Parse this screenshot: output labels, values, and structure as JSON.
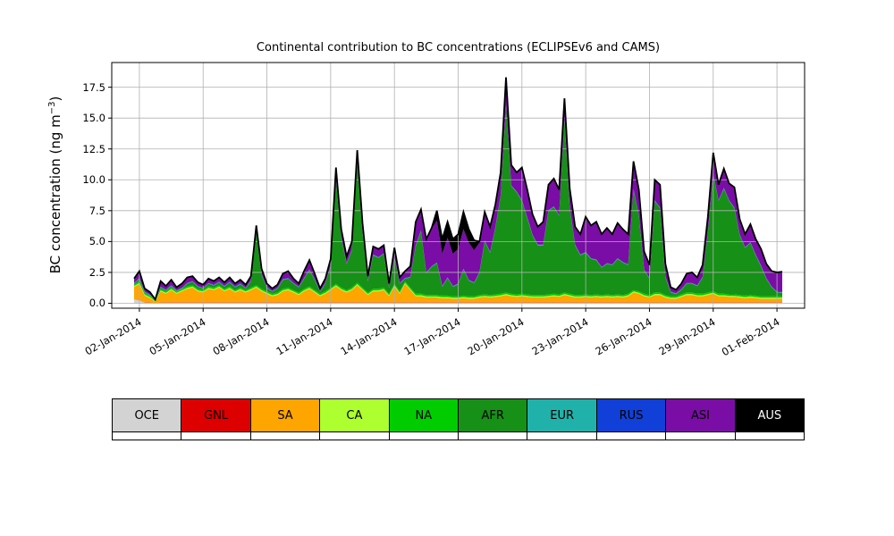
{
  "title": "Continental contribution to BC concentrations (ECLIPSEv6 and CAMS)",
  "ylabel": {
    "prefix": "BC concentration (ng m",
    "sup": "−3",
    "suffix": ")"
  },
  "legend": {
    "items": [
      {
        "label": "OCE",
        "color": "#d3d3d3",
        "text": "#000000"
      },
      {
        "label": "GNL",
        "color": "#dd0000",
        "text": "#000000"
      },
      {
        "label": "SA",
        "color": "#ffa500",
        "text": "#000000"
      },
      {
        "label": "CA",
        "color": "#adff2f",
        "text": "#000000"
      },
      {
        "label": "NA",
        "color": "#00cc00",
        "text": "#000000"
      },
      {
        "label": "AFR",
        "color": "#169016",
        "text": "#000000"
      },
      {
        "label": "EUR",
        "color": "#20b2aa",
        "text": "#000000"
      },
      {
        "label": "RUS",
        "color": "#1040d8",
        "text": "#000000"
      },
      {
        "label": "ASI",
        "color": "#7a0da5",
        "text": "#000000"
      },
      {
        "label": "AUS",
        "color": "#000000",
        "text": "#ffffff"
      }
    ]
  },
  "chart_data": {
    "type": "area",
    "stacked": true,
    "title": "Continental contribution to BC concentrations (ECLIPSEv6 and CAMS)",
    "xlabel": "",
    "ylabel": "BC concentration (ng m^-3)",
    "grid": true,
    "grid_color": "#b0b0b0",
    "total_line_color": "#000000",
    "x_units": "day number of 2014 (1 = 01-Jan-2014, 32 = 01-Feb-2014), 6-hourly estimates",
    "xlim": [
      0.7,
      33.3
    ],
    "ylim": [
      -0.4,
      19.5
    ],
    "x_ticks": [
      {
        "day": 2,
        "label": "02-Jan-2014"
      },
      {
        "day": 5,
        "label": "05-Jan-2014"
      },
      {
        "day": 8,
        "label": "08-Jan-2014"
      },
      {
        "day": 11,
        "label": "11-Jan-2014"
      },
      {
        "day": 14,
        "label": "14-Jan-2014"
      },
      {
        "day": 17,
        "label": "17-Jan-2014"
      },
      {
        "day": 20,
        "label": "20-Jan-2014"
      },
      {
        "day": 23,
        "label": "23-Jan-2014"
      },
      {
        "day": 26,
        "label": "26-Jan-2014"
      },
      {
        "day": 29,
        "label": "29-Jan-2014"
      },
      {
        "day": 32,
        "label": "01-Feb-2014"
      }
    ],
    "y_ticks": [
      {
        "value": 0,
        "label": "0.0"
      },
      {
        "value": 2.5,
        "label": "2.5"
      },
      {
        "value": 5,
        "label": "5.0"
      },
      {
        "value": 7.5,
        "label": "7.5"
      },
      {
        "value": 10,
        "label": "10.0"
      },
      {
        "value": 12.5,
        "label": "12.5"
      },
      {
        "value": 15,
        "label": "15.0"
      },
      {
        "value": 17.5,
        "label": "17.5"
      }
    ],
    "x": [
      1.75,
      2,
      2.25,
      2.5,
      2.75,
      3,
      3.25,
      3.5,
      3.75,
      4,
      4.25,
      4.5,
      4.75,
      5,
      5.25,
      5.5,
      5.75,
      6,
      6.25,
      6.5,
      6.75,
      7,
      7.25,
      7.5,
      7.75,
      8,
      8.25,
      8.5,
      8.75,
      9,
      9.25,
      9.5,
      9.75,
      10,
      10.25,
      10.5,
      10.75,
      11,
      11.25,
      11.5,
      11.75,
      12,
      12.25,
      12.5,
      12.75,
      13,
      13.25,
      13.5,
      13.75,
      14,
      14.25,
      14.5,
      14.75,
      15,
      15.25,
      15.5,
      15.75,
      16,
      16.25,
      16.5,
      16.75,
      17,
      17.25,
      17.5,
      17.75,
      18,
      18.25,
      18.5,
      18.75,
      19,
      19.25,
      19.5,
      19.75,
      20,
      20.25,
      20.5,
      20.75,
      21,
      21.25,
      21.5,
      21.75,
      22,
      22.25,
      22.5,
      22.75,
      23,
      23.25,
      23.5,
      23.75,
      24,
      24.25,
      24.5,
      24.75,
      25,
      25.25,
      25.5,
      25.75,
      26,
      26.25,
      26.5,
      26.75,
      27,
      27.25,
      27.5,
      27.75,
      28,
      28.25,
      28.5,
      28.75,
      29,
      29.25,
      29.5,
      29.75,
      30,
      30.25,
      30.5,
      30.75,
      31,
      31.25,
      31.5,
      31.75,
      32,
      32.25
    ],
    "series": [
      {
        "name": "OCE",
        "color": "#d3d3d3",
        "base": 0.05,
        "overrides": {
          "0": 0.3,
          "1": 0.25,
          "4": 0.02
        }
      },
      {
        "name": "GNL",
        "color": "#dd0000",
        "base": 0.02,
        "overrides": {
          "4": 0.01
        }
      },
      {
        "name": "SA",
        "color": "#ffa500",
        "values": [
          1.0,
          1.3,
          0.55,
          0.35,
          0.1,
          0.9,
          0.7,
          1.0,
          0.7,
          0.9,
          1.1,
          1.2,
          0.9,
          0.8,
          1.1,
          1.0,
          1.2,
          0.9,
          1.1,
          0.8,
          1.0,
          0.8,
          1.0,
          1.2,
          0.9,
          0.7,
          0.5,
          0.6,
          0.9,
          1.0,
          0.8,
          0.6,
          0.9,
          1.1,
          0.8,
          0.5,
          0.7,
          1.0,
          1.3,
          1.0,
          0.8,
          1.0,
          1.4,
          1.0,
          0.6,
          0.9,
          0.9,
          1.0,
          0.5,
          1.3,
          0.7,
          1.5,
          1.0,
          0.5,
          0.5,
          0.4,
          0.4,
          0.4,
          0.35,
          0.35,
          0.3,
          0.3,
          0.35,
          0.3,
          0.3,
          0.4,
          0.45,
          0.4,
          0.45,
          0.5,
          0.6,
          0.5,
          0.45,
          0.5,
          0.45,
          0.4,
          0.4,
          0.4,
          0.45,
          0.5,
          0.45,
          0.6,
          0.5,
          0.4,
          0.4,
          0.45,
          0.4,
          0.45,
          0.4,
          0.45,
          0.4,
          0.45,
          0.4,
          0.5,
          0.8,
          0.7,
          0.5,
          0.4,
          0.6,
          0.6,
          0.4,
          0.3,
          0.3,
          0.45,
          0.6,
          0.6,
          0.5,
          0.5,
          0.6,
          0.7,
          0.5,
          0.5,
          0.45,
          0.45,
          0.4,
          0.35,
          0.4,
          0.35,
          0.3,
          0.3,
          0.3,
          0.3,
          0.3
        ]
      },
      {
        "name": "CA",
        "color": "#adff2f",
        "base": 0.08,
        "overrides": {
          "4": 0.02
        }
      },
      {
        "name": "NA",
        "color": "#00cc00",
        "base": 0.12,
        "overrides": {
          "4": 0.04
        }
      },
      {
        "name": "AFR",
        "color": "#169016",
        "values": [
          0.07,
          0.22,
          0.07,
          0.02,
          0.05,
          0.12,
          0.07,
          0.12,
          0.02,
          0.02,
          0.22,
          0.27,
          0.17,
          0.12,
          0.22,
          0.17,
          0.22,
          0.17,
          0.32,
          0.22,
          0.27,
          0.12,
          0.52,
          4.22,
          1.12,
          0.27,
          0.17,
          0.32,
          0.72,
          0.72,
          0.52,
          0.42,
          0.82,
          1.32,
          0.82,
          0.17,
          0.62,
          1.72,
          8.42,
          4.02,
          2.12,
          3.02,
          9.72,
          4.42,
          0.92,
          2.72,
          2.52,
          2.72,
          0.47,
          2.12,
          0.62,
          0.22,
          0.82,
          3.87,
          5.07,
          1.77,
          2.27,
          2.57,
          0.72,
          1.42,
          0.77,
          0.97,
          2.12,
          1.27,
          1.07,
          1.77,
          4.32,
          3.42,
          5.37,
          7.92,
          15.12,
          8.72,
          8.27,
          7.52,
          6.17,
          4.82,
          4.02,
          4.02,
          6.77,
          7.02,
          6.37,
          14.02,
          6.92,
          4.02,
          3.22,
          3.37,
          2.92,
          2.77,
          2.22,
          2.47,
          2.42,
          2.87,
          2.62,
          2.32,
          8.12,
          6.12,
          1.92,
          1.32,
          7.42,
          6.82,
          1.42,
          0.32,
          0.17,
          0.37,
          0.72,
          0.72,
          0.62,
          1.32,
          4.82,
          9.52,
          7.52,
          8.52,
          7.57,
          6.97,
          4.82,
          3.87,
          4.22,
          3.27,
          2.42,
          1.42,
          0.72,
          0.32,
          0.27
        ]
      },
      {
        "name": "EUR",
        "color": "#20b2aa",
        "base": 0.03,
        "overrides": {
          "4": 0.01
        }
      },
      {
        "name": "RUS",
        "color": "#1040d8",
        "base": 0.03,
        "overrides": {
          "4": 0.01
        }
      },
      {
        "name": "ASI",
        "color": "#7a0da5",
        "values": [
          0.3,
          0.5,
          0.2,
          0.15,
          0.03,
          0.4,
          0.25,
          0.4,
          0.2,
          0.3,
          0.4,
          0.35,
          0.25,
          0.2,
          0.3,
          0.25,
          0.3,
          0.25,
          0.3,
          0.2,
          0.25,
          0.2,
          0.3,
          0.5,
          0.4,
          0.25,
          0.15,
          0.2,
          0.4,
          0.5,
          0.3,
          0.2,
          0.5,
          0.7,
          0.4,
          0.15,
          0.3,
          0.5,
          0.9,
          0.6,
          0.5,
          0.6,
          0.9,
          0.7,
          0.3,
          0.6,
          0.6,
          0.6,
          0.25,
          0.7,
          0.4,
          0.5,
          0.8,
          1.8,
          1.6,
          2.6,
          3.0,
          3.4,
          2.6,
          3.2,
          2.6,
          2.8,
          3.2,
          3.0,
          2.6,
          2.4,
          2.2,
          2.0,
          1.8,
          1.8,
          2.2,
          1.6,
          1.5,
          2.6,
          2.2,
          1.6,
          1.4,
          1.8,
          2.0,
          2.2,
          2.0,
          1.6,
          1.5,
          1.4,
          1.6,
          2.8,
          2.6,
          3.0,
          2.6,
          2.8,
          2.4,
          2.8,
          2.6,
          2.4,
          2.2,
          2.0,
          1.4,
          1.0,
          1.6,
          1.8,
          1.0,
          0.3,
          0.25,
          0.4,
          0.7,
          0.8,
          0.6,
          0.9,
          1.2,
          1.6,
          1.2,
          1.5,
          1.3,
          1.6,
          1.2,
          1.0,
          1.4,
          1.2,
          1.3,
          1.1,
          1.2,
          1.5,
          1.6
        ]
      },
      {
        "name": "AUS",
        "color": "#000000",
        "base": 0.05,
        "overrides": {
          "4": 0.01,
          "53": 0.1,
          "54": 0.1,
          "55": 0.1,
          "56": 0.1,
          "57": 0.8,
          "58": 1.2,
          "59": 1.3,
          "60": 1.2,
          "61": 1.2,
          "62": 1.4,
          "63": 1.1,
          "64": 0.8,
          "65": 0.1,
          "66": 0.1
        }
      }
    ]
  }
}
